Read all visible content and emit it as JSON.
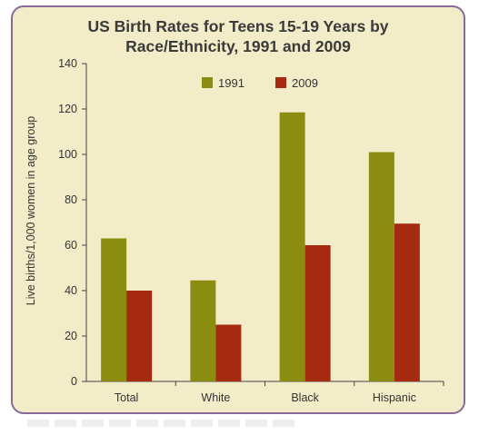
{
  "chart_data": {
    "type": "bar",
    "title_lines": [
      "US Birth Rates for Teens 15-19 Years by",
      "Race/Ethnicity, 1991 and 2009"
    ],
    "ylabel": "Live births/1,000 women in age group",
    "categories": [
      "Total",
      "White",
      "Black",
      "Hispanic"
    ],
    "series": [
      {
        "name": "1991",
        "values": [
          63,
          44.5,
          118.5,
          101
        ],
        "color": "#8b8d10"
      },
      {
        "name": "2009",
        "values": [
          40,
          25,
          60,
          69.5
        ],
        "color": "#a52a10"
      }
    ],
    "ylim": [
      0,
      140
    ],
    "yticks": [
      "0",
      "20",
      "40",
      "60",
      "80",
      "100",
      "120",
      "140"
    ],
    "grid": false,
    "legend_position": "top-center",
    "colors": {
      "background": "#f3ecc8",
      "border": "#8a6a9a",
      "axis": "#444444"
    }
  }
}
